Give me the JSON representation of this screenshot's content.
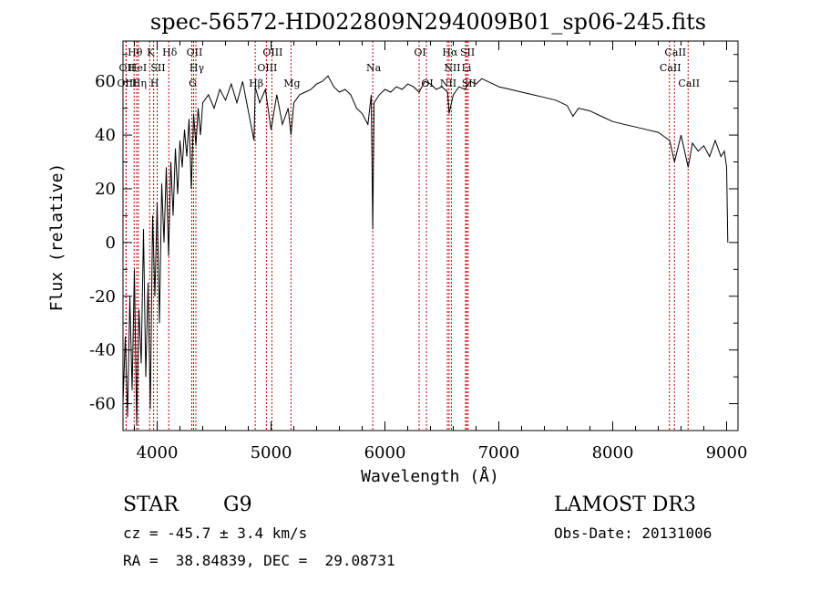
{
  "chart_data": {
    "type": "line",
    "title": "spec-56572-HD022809N294009B01_sp06-245.fits",
    "xlabel": "Wavelength (Å)",
    "ylabel": "Flux (relative)",
    "xlim": [
      3700,
      9100
    ],
    "ylim": [
      -70,
      75
    ],
    "xticks": [
      4000,
      5000,
      6000,
      7000,
      8000,
      9000
    ],
    "yticks": [
      -60,
      -40,
      -20,
      0,
      20,
      40,
      60
    ],
    "grid": false,
    "series": [
      {
        "color": "#000000",
        "x": [
          3700,
          3720,
          3740,
          3760,
          3780,
          3800,
          3820,
          3840,
          3860,
          3880,
          3900,
          3920,
          3940,
          3960,
          3980,
          4000,
          4020,
          4040,
          4060,
          4080,
          4100,
          4120,
          4140,
          4160,
          4180,
          4200,
          4220,
          4240,
          4260,
          4280,
          4300,
          4320,
          4340,
          4360,
          4380,
          4400,
          4450,
          4500,
          4550,
          4600,
          4650,
          4700,
          4750,
          4800,
          4850,
          4861,
          4900,
          4950,
          5000,
          5050,
          5100,
          5150,
          5175,
          5200,
          5250,
          5300,
          5350,
          5400,
          5450,
          5500,
          5550,
          5600,
          5650,
          5700,
          5750,
          5800,
          5850,
          5880,
          5893,
          5905,
          5950,
          6000,
          6050,
          6100,
          6150,
          6200,
          6250,
          6300,
          6350,
          6400,
          6450,
          6500,
          6550,
          6563,
          6600,
          6650,
          6700,
          6750,
          6800,
          6850,
          6900,
          6950,
          7000,
          7100,
          7200,
          7300,
          7400,
          7500,
          7600,
          7650,
          7700,
          7800,
          7900,
          8000,
          8100,
          8200,
          8300,
          8400,
          8500,
          8542,
          8600,
          8662,
          8700,
          8750,
          8800,
          8850,
          8900,
          8950,
          8980,
          9000,
          9010
        ],
        "y": [
          -60,
          -35,
          -65,
          -20,
          -55,
          -10,
          -68,
          -25,
          -45,
          5,
          -50,
          -15,
          -62,
          10,
          -20,
          15,
          -30,
          22,
          0,
          28,
          -5,
          30,
          10,
          35,
          18,
          38,
          28,
          42,
          32,
          46,
          20,
          48,
          36,
          50,
          40,
          52,
          55,
          50,
          57,
          53,
          59,
          52,
          60,
          49,
          38,
          58,
          52,
          57,
          42,
          55,
          44,
          50,
          40,
          52,
          55,
          56,
          57,
          59,
          60,
          62,
          58,
          56,
          57,
          55,
          50,
          48,
          44,
          55,
          5,
          52,
          55,
          57,
          56,
          58,
          57,
          59,
          58,
          56,
          60,
          59,
          57,
          58,
          56,
          48,
          55,
          58,
          57,
          60,
          59,
          61,
          60,
          59,
          58,
          57,
          56,
          55,
          54,
          53,
          51,
          47,
          50,
          49,
          47,
          45,
          44,
          43,
          42,
          41,
          38,
          30,
          40,
          28,
          37,
          34,
          36,
          32,
          38,
          32,
          34,
          28,
          0
        ]
      }
    ],
    "annotations": [
      {
        "text": "STAR",
        "x_frac": 0
      },
      {
        "text": "G9"
      },
      {
        "text": "LAMOST DR3"
      },
      {
        "text": "cz = -45.7 ± 3.4 km/s"
      },
      {
        "text": "Obs-Date: 20131006"
      },
      {
        "text": "RA =  38.84839, DEC =  29.08731"
      }
    ],
    "lines": [
      {
        "label": "OII",
        "wl": 3727,
        "row": 2
      },
      {
        "label": "OIII",
        "wl": 3727,
        "row": 3
      },
      {
        "label": "Hθ",
        "wl": 3798,
        "row": 1
      },
      {
        "label": "HeI",
        "wl": 3820,
        "row": 2
      },
      {
        "label": "Hη",
        "wl": 3835,
        "row": 3
      },
      {
        "label": "K",
        "wl": 3934,
        "row": 1
      },
      {
        "label": "SII",
        "wl": 4000,
        "row": 2
      },
      {
        "label": "H",
        "wl": 3969,
        "row": 3
      },
      {
        "label": "Hδ",
        "wl": 4102,
        "row": 1
      },
      {
        "label": "OII",
        "wl": 4320,
        "row": 1
      },
      {
        "label": "Hγ",
        "wl": 4340,
        "row": 2
      },
      {
        "label": "G",
        "wl": 4304,
        "row": 3
      },
      {
        "label": "OIII",
        "wl": 5007,
        "row": 1
      },
      {
        "label": "OIII",
        "wl": 4959,
        "row": 2
      },
      {
        "label": "Hβ",
        "wl": 4861,
        "row": 3
      },
      {
        "label": "Mg",
        "wl": 5175,
        "row": 3
      },
      {
        "label": "Na",
        "wl": 5893,
        "row": 2
      },
      {
        "label": "OI",
        "wl": 6300,
        "row": 1
      },
      {
        "label": "OI",
        "wl": 6364,
        "row": 3
      },
      {
        "label": "Hα",
        "wl": 6563,
        "row": 1
      },
      {
        "label": "SII",
        "wl": 6717,
        "row": 1
      },
      {
        "label": "NII",
        "wl": 6583,
        "row": 2
      },
      {
        "label": "Li",
        "wl": 6708,
        "row": 2
      },
      {
        "label": "NII",
        "wl": 6548,
        "row": 3
      },
      {
        "label": "SII",
        "wl": 6731,
        "row": 3
      },
      {
        "label": "CaII",
        "wl": 8542,
        "row": 1
      },
      {
        "label": "CaII",
        "wl": 8498,
        "row": 2
      },
      {
        "label": "CaII",
        "wl": 8662,
        "row": 3
      }
    ]
  }
}
